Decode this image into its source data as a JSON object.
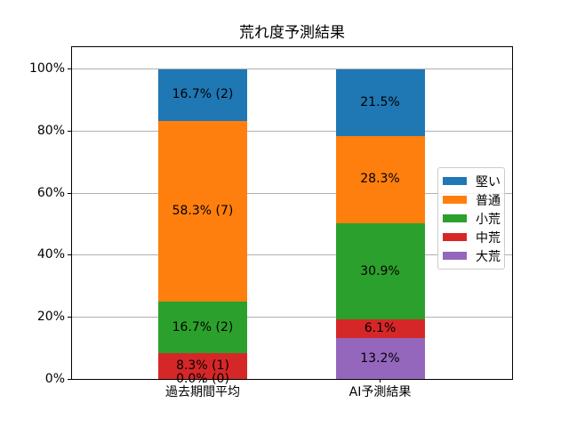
{
  "chart_data": {
    "type": "bar",
    "subtype": "stacked",
    "title": "荒れ度予測結果",
    "categories": [
      "過去期間平均",
      "AI予測結果"
    ],
    "series": [
      {
        "name": "堅い",
        "color": "#1f77b4",
        "values": [
          16.7,
          21.5
        ],
        "labels": [
          "16.7% (2)",
          "21.5%"
        ]
      },
      {
        "name": "普通",
        "color": "#ff7f0e",
        "values": [
          58.3,
          28.3
        ],
        "labels": [
          "58.3% (7)",
          "28.3%"
        ]
      },
      {
        "name": "小荒",
        "color": "#2ca02c",
        "values": [
          16.7,
          30.9
        ],
        "labels": [
          "16.7% (2)",
          "30.9%"
        ]
      },
      {
        "name": "中荒",
        "color": "#d62728",
        "values": [
          8.3,
          6.1
        ],
        "labels": [
          "8.3% (1)",
          "6.1%"
        ]
      },
      {
        "name": "大荒",
        "color": "#9467bd",
        "values": [
          0.0,
          13.2
        ],
        "labels": [
          "0.0% (0)",
          "13.2%"
        ]
      }
    ],
    "stack_order_bottom_to_top": [
      "大荒",
      "中荒",
      "小荒",
      "普通",
      "堅い"
    ],
    "y_axis": {
      "tick_values": [
        0,
        20,
        40,
        60,
        80,
        100
      ],
      "tick_labels": [
        "0%",
        "20%",
        "40%",
        "60%",
        "80%",
        "100%"
      ],
      "ylim": [
        0,
        107.14
      ]
    },
    "xlabel": "",
    "ylabel": "",
    "grid": true,
    "legend_position": "center right",
    "grid_color": "#b0b0b0",
    "background_color": "#ffffff",
    "text_color": "#000000"
  }
}
